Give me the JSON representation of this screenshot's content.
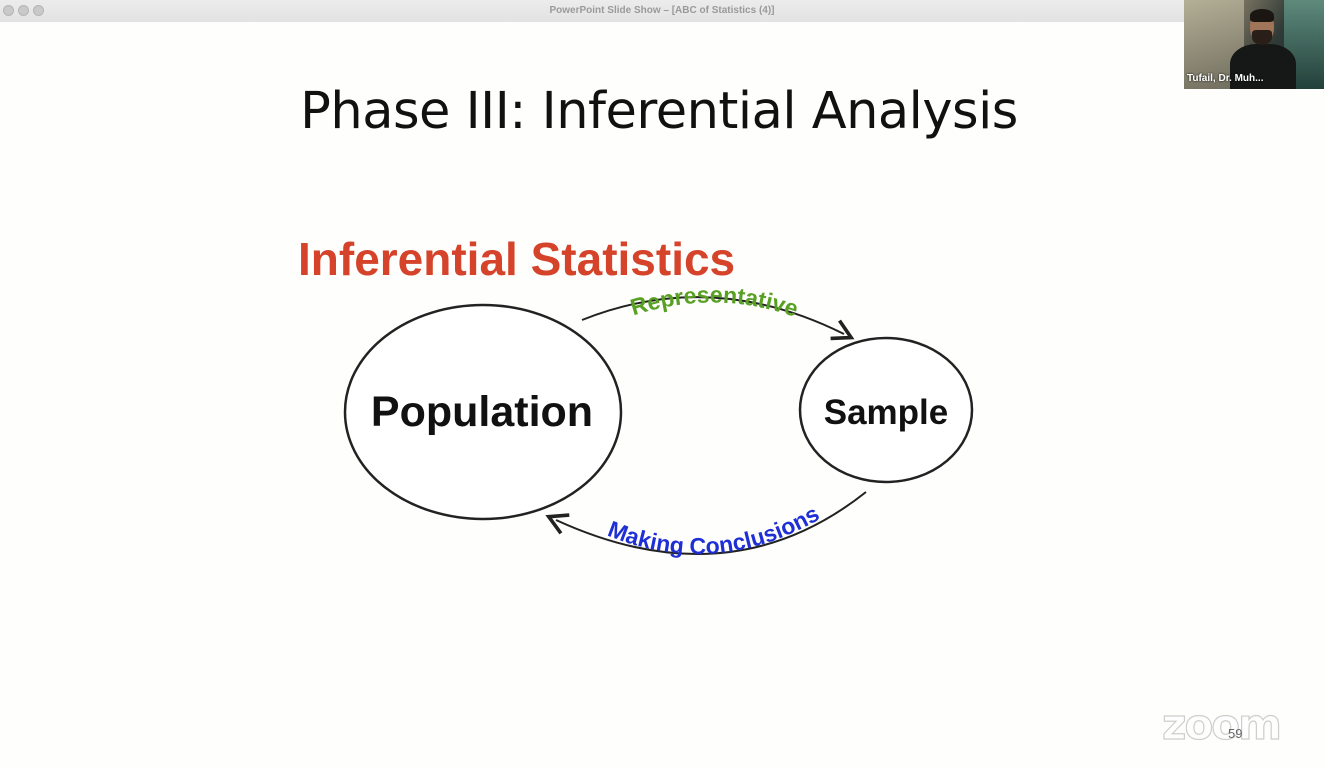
{
  "window": {
    "title": "PowerPoint Slide Show – [ABC of Statistics (4)]"
  },
  "slide": {
    "title": "Phase III: Inferential Analysis",
    "page_number": "59"
  },
  "diagram": {
    "heading": "Inferential Statistics",
    "population_label": "Population",
    "sample_label": "Sample",
    "top_arrow_label": "Representative",
    "bottom_arrow_label": "Making Conclusions",
    "colors": {
      "heading": "#d4432a",
      "top_arrow_label": "#58a022",
      "bottom_arrow_label": "#1f2fd6",
      "circle_stroke": "#222222"
    }
  },
  "participant": {
    "name": "Tufail, Dr. Muh..."
  },
  "branding": {
    "zoom_logo": "zoom"
  },
  "icons": {
    "traffic_lights": [
      "close-icon",
      "minimize-icon",
      "zoom-window-icon"
    ]
  }
}
